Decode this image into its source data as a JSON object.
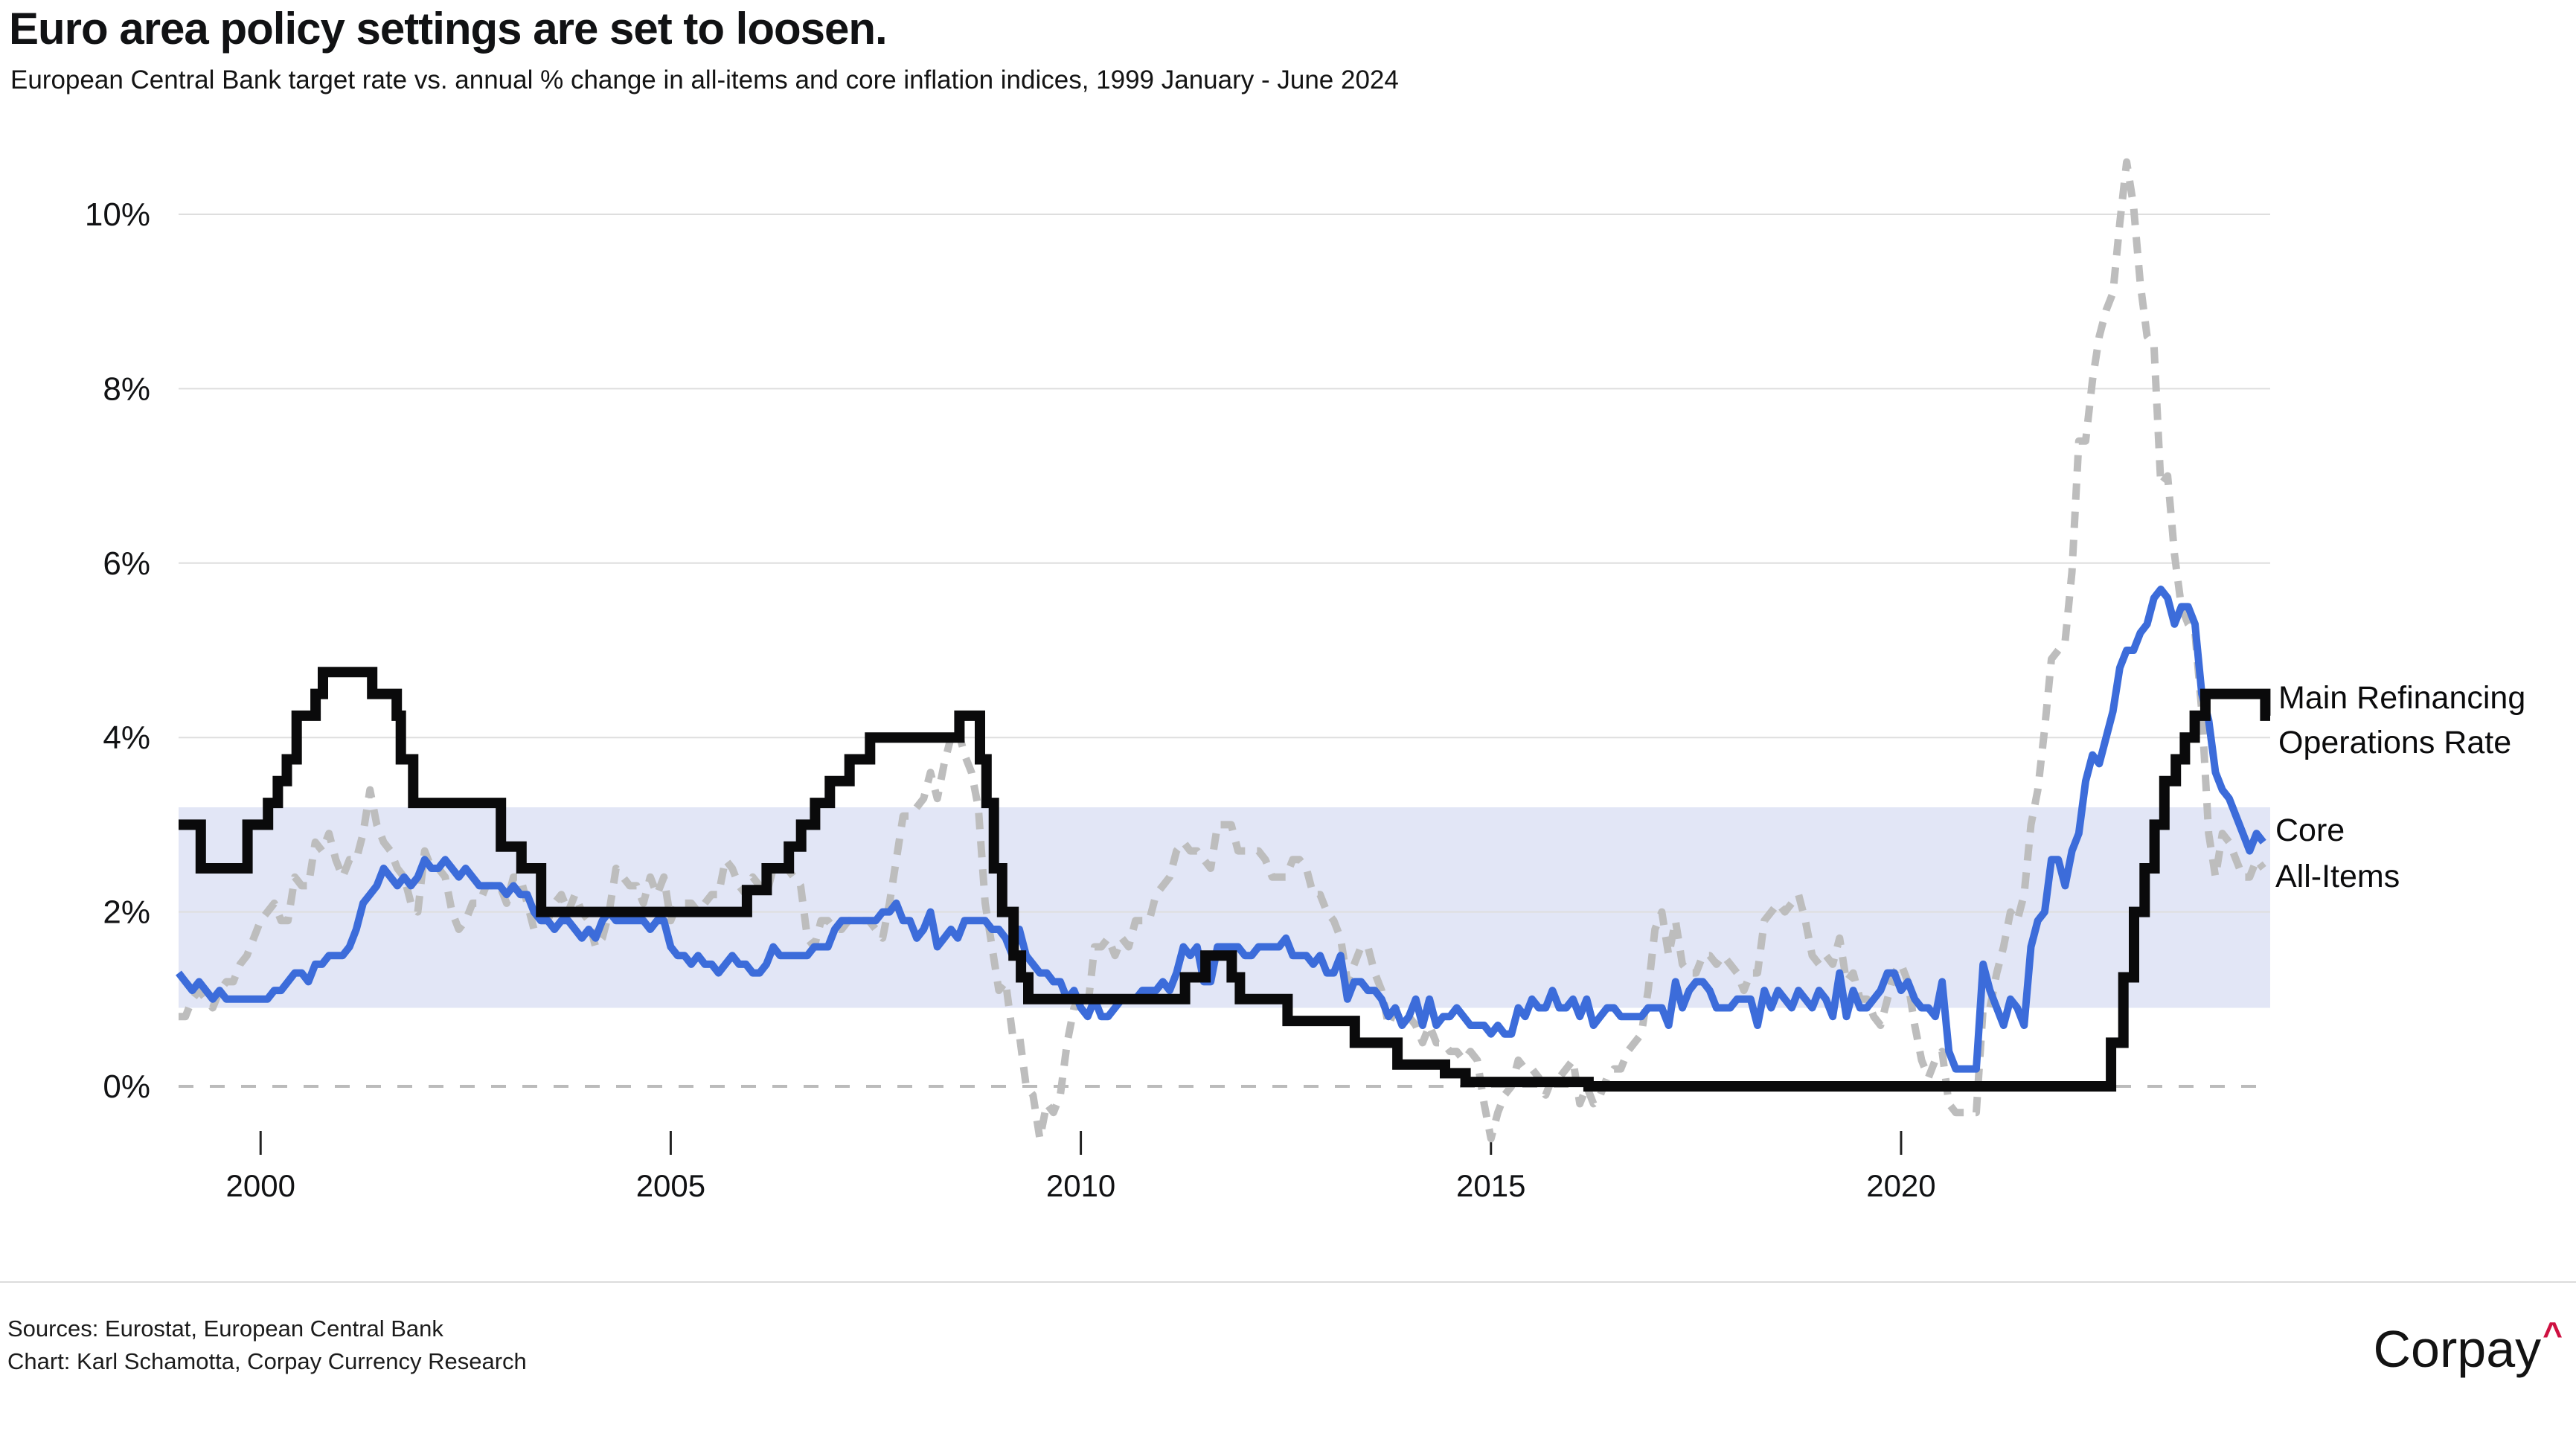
{
  "header": {
    "title": "Euro area policy settings are set to loosen.",
    "subtitle": "European Central Bank target rate vs. annual % change in all-items and core inflation indices, 1999 January - June 2024"
  },
  "footer": {
    "sources": "Sources: Eurostat, European Central Bank",
    "credit": "Chart: Karl Schamotta, Corpay Currency Research",
    "logo_text": "Corpay",
    "logo_caret": "^",
    "logo_caret_color": "#CE1141"
  },
  "colors": {
    "band": "#E2E6F6",
    "gridline": "#DEDEDE",
    "zero_line": "#BBBBBB",
    "mro": "#0A0A0B",
    "core": "#3C6CDA",
    "all_items": "#BDBDBD",
    "text": "#111214"
  },
  "chart_data": {
    "type": "line",
    "title": "Euro area policy settings are set to loosen.",
    "subtitle": "European Central Bank target rate vs. annual % change in all-items and core inflation indices, 1999 January - June 2024",
    "x_axis": {
      "range": [
        1999.0,
        2024.5
      ],
      "ticks": [
        2000,
        2005,
        2010,
        2015,
        2020
      ]
    },
    "y_axis": {
      "range": [
        -0.75,
        10.75
      ],
      "tick_values": [
        0,
        2,
        4,
        6,
        8,
        10
      ],
      "tick_labels": [
        "0%",
        "2%",
        "4%",
        "6%",
        "8%",
        "10%"
      ],
      "zero_line_dashed": true
    },
    "band": {
      "from": 0.9,
      "to": 3.2
    },
    "legend_position": "right-of-line-ends",
    "grid": true,
    "series": [
      {
        "name": "Main Refinancing Operations Rate",
        "label_lines": [
          "Main Refinancing",
          "Operations Rate"
        ],
        "style": "step",
        "width": 14,
        "points": [
          [
            1999.0,
            3.0
          ],
          [
            1999.27,
            2.5
          ],
          [
            1999.84,
            3.0
          ],
          [
            2000.09,
            3.25
          ],
          [
            2000.21,
            3.5
          ],
          [
            2000.32,
            3.75
          ],
          [
            2000.44,
            4.25
          ],
          [
            2000.67,
            4.5
          ],
          [
            2000.76,
            4.75
          ],
          [
            2001.36,
            4.5
          ],
          [
            2001.66,
            4.25
          ],
          [
            2001.71,
            3.75
          ],
          [
            2001.86,
            3.25
          ],
          [
            2002.93,
            2.75
          ],
          [
            2003.18,
            2.5
          ],
          [
            2003.42,
            2.0
          ],
          [
            2005.93,
            2.25
          ],
          [
            2006.17,
            2.5
          ],
          [
            2006.44,
            2.75
          ],
          [
            2006.59,
            3.0
          ],
          [
            2006.76,
            3.25
          ],
          [
            2006.94,
            3.5
          ],
          [
            2007.18,
            3.75
          ],
          [
            2007.43,
            4.0
          ],
          [
            2008.52,
            4.25
          ],
          [
            2008.77,
            3.75
          ],
          [
            2008.85,
            3.25
          ],
          [
            2008.94,
            2.5
          ],
          [
            2009.04,
            2.0
          ],
          [
            2009.18,
            1.5
          ],
          [
            2009.27,
            1.25
          ],
          [
            2009.36,
            1.0
          ],
          [
            2011.27,
            1.25
          ],
          [
            2011.52,
            1.5
          ],
          [
            2011.84,
            1.25
          ],
          [
            2011.94,
            1.0
          ],
          [
            2012.52,
            0.75
          ],
          [
            2013.34,
            0.5
          ],
          [
            2013.86,
            0.25
          ],
          [
            2014.44,
            0.15
          ],
          [
            2014.69,
            0.05
          ],
          [
            2016.19,
            0.0
          ],
          [
            2022.56,
            0.5
          ],
          [
            2022.71,
            1.25
          ],
          [
            2022.84,
            2.0
          ],
          [
            2022.97,
            2.5
          ],
          [
            2023.09,
            3.0
          ],
          [
            2023.21,
            3.5
          ],
          [
            2023.35,
            3.75
          ],
          [
            2023.46,
            4.0
          ],
          [
            2023.58,
            4.25
          ],
          [
            2023.71,
            4.5
          ],
          [
            2024.44,
            4.25
          ]
        ]
      },
      {
        "name": "Core",
        "label": "Core",
        "style": "line",
        "width": 10,
        "start": 1999.0,
        "values_per_year": 12,
        "values": [
          1.3,
          1.2,
          1.1,
          1.2,
          1.1,
          1.0,
          1.1,
          1.0,
          1.0,
          1.0,
          1.0,
          1.0,
          1.0,
          1.0,
          1.1,
          1.1,
          1.2,
          1.3,
          1.3,
          1.2,
          1.4,
          1.4,
          1.5,
          1.5,
          1.5,
          1.6,
          1.8,
          2.1,
          2.2,
          2.3,
          2.5,
          2.4,
          2.3,
          2.4,
          2.3,
          2.4,
          2.6,
          2.5,
          2.5,
          2.6,
          2.5,
          2.4,
          2.5,
          2.4,
          2.3,
          2.3,
          2.3,
          2.3,
          2.2,
          2.3,
          2.2,
          2.2,
          2.0,
          1.9,
          1.9,
          1.8,
          1.9,
          1.9,
          1.8,
          1.7,
          1.8,
          1.7,
          1.9,
          2.0,
          1.9,
          1.9,
          1.9,
          1.9,
          1.9,
          1.8,
          1.9,
          1.9,
          1.6,
          1.5,
          1.5,
          1.4,
          1.5,
          1.4,
          1.4,
          1.3,
          1.4,
          1.5,
          1.4,
          1.4,
          1.3,
          1.3,
          1.4,
          1.6,
          1.5,
          1.5,
          1.5,
          1.5,
          1.5,
          1.6,
          1.6,
          1.6,
          1.8,
          1.9,
          1.9,
          1.9,
          1.9,
          1.9,
          1.9,
          2.0,
          2.0,
          2.1,
          1.9,
          1.9,
          1.7,
          1.8,
          2.0,
          1.6,
          1.7,
          1.8,
          1.7,
          1.9,
          1.9,
          1.9,
          1.9,
          1.8,
          1.8,
          1.7,
          1.5,
          1.8,
          1.5,
          1.4,
          1.3,
          1.3,
          1.2,
          1.2,
          1.0,
          1.1,
          0.9,
          0.8,
          1.0,
          0.8,
          0.8,
          0.9,
          1.0,
          1.0,
          1.0,
          1.1,
          1.1,
          1.1,
          1.2,
          1.1,
          1.3,
          1.6,
          1.5,
          1.6,
          1.2,
          1.2,
          1.6,
          1.6,
          1.6,
          1.6,
          1.5,
          1.5,
          1.6,
          1.6,
          1.6,
          1.6,
          1.7,
          1.5,
          1.5,
          1.5,
          1.4,
          1.5,
          1.3,
          1.3,
          1.5,
          1.0,
          1.2,
          1.2,
          1.1,
          1.1,
          1.0,
          0.8,
          0.9,
          0.7,
          0.8,
          1.0,
          0.7,
          1.0,
          0.7,
          0.8,
          0.8,
          0.9,
          0.8,
          0.7,
          0.7,
          0.7,
          0.6,
          0.7,
          0.6,
          0.6,
          0.9,
          0.8,
          1.0,
          0.9,
          0.9,
          1.1,
          0.9,
          0.9,
          1.0,
          0.8,
          1.0,
          0.7,
          0.8,
          0.9,
          0.9,
          0.8,
          0.8,
          0.8,
          0.8,
          0.9,
          0.9,
          0.9,
          0.7,
          1.2,
          0.9,
          1.1,
          1.2,
          1.2,
          1.1,
          0.9,
          0.9,
          0.9,
          1.0,
          1.0,
          1.0,
          0.7,
          1.1,
          0.9,
          1.1,
          1.0,
          0.9,
          1.1,
          1.0,
          0.9,
          1.1,
          1.0,
          0.8,
          1.3,
          0.8,
          1.1,
          0.9,
          0.9,
          1.0,
          1.1,
          1.3,
          1.3,
          1.1,
          1.2,
          1.0,
          0.9,
          0.9,
          0.8,
          1.2,
          0.4,
          0.2,
          0.2,
          0.2,
          0.2,
          1.4,
          1.1,
          0.9,
          0.7,
          1.0,
          0.9,
          0.7,
          1.6,
          1.9,
          2.0,
          2.6,
          2.6,
          2.3,
          2.7,
          2.9,
          3.5,
          3.8,
          3.7,
          4.0,
          4.3,
          4.8,
          5.0,
          5.0,
          5.2,
          5.3,
          5.6,
          5.7,
          5.6,
          5.3,
          5.5,
          5.5,
          5.3,
          4.5,
          4.2,
          3.6,
          3.4,
          3.3,
          3.1,
          2.9,
          2.7,
          2.9,
          2.8
        ]
      },
      {
        "name": "All-Items",
        "label": "All-Items",
        "style": "dashed-line",
        "width": 10,
        "start": 1999.0,
        "values_per_year": 12,
        "values": [
          0.8,
          0.8,
          1.0,
          1.1,
          1.0,
          0.9,
          1.1,
          1.2,
          1.2,
          1.4,
          1.5,
          1.7,
          1.9,
          2.0,
          2.1,
          1.9,
          1.9,
          2.4,
          2.3,
          2.3,
          2.8,
          2.7,
          2.9,
          2.6,
          2.4,
          2.6,
          2.6,
          2.9,
          3.4,
          3.0,
          2.8,
          2.7,
          2.5,
          2.4,
          2.1,
          2.0,
          2.7,
          2.5,
          2.5,
          2.4,
          2.0,
          1.8,
          1.9,
          2.1,
          2.1,
          2.3,
          2.3,
          2.3,
          2.1,
          2.4,
          2.4,
          2.1,
          1.8,
          1.9,
          1.9,
          2.1,
          2.2,
          2.0,
          2.2,
          2.0,
          1.9,
          1.6,
          1.7,
          2.0,
          2.5,
          2.4,
          2.3,
          2.3,
          2.1,
          2.4,
          2.2,
          2.4,
          1.9,
          2.1,
          2.1,
          2.1,
          2.0,
          2.1,
          2.2,
          2.2,
          2.6,
          2.5,
          2.3,
          2.2,
          2.4,
          2.3,
          2.2,
          2.5,
          2.5,
          2.5,
          2.4,
          2.3,
          1.7,
          1.6,
          1.9,
          1.9,
          1.8,
          1.8,
          1.9,
          1.9,
          1.9,
          1.9,
          1.8,
          1.7,
          2.1,
          2.6,
          3.1,
          3.1,
          3.2,
          3.3,
          3.6,
          3.3,
          3.7,
          4.0,
          4.1,
          3.8,
          3.6,
          3.2,
          2.1,
          1.6,
          1.1,
          1.2,
          0.6,
          0.6,
          0.0,
          -0.1,
          -0.6,
          -0.2,
          -0.3,
          -0.1,
          0.5,
          0.9,
          1.0,
          0.9,
          1.6,
          1.6,
          1.7,
          1.5,
          1.7,
          1.6,
          1.9,
          1.9,
          1.9,
          2.2,
          2.3,
          2.4,
          2.7,
          2.8,
          2.7,
          2.7,
          2.6,
          2.5,
          3.0,
          3.0,
          3.0,
          2.7,
          2.7,
          2.7,
          2.7,
          2.6,
          2.4,
          2.4,
          2.4,
          2.6,
          2.6,
          2.5,
          2.2,
          2.2,
          2.0,
          1.9,
          1.7,
          1.2,
          1.4,
          1.6,
          1.6,
          1.3,
          1.1,
          0.7,
          0.9,
          0.8,
          0.8,
          0.7,
          0.5,
          0.7,
          0.5,
          0.5,
          0.4,
          0.4,
          0.3,
          0.4,
          0.3,
          -0.2,
          -0.6,
          -0.3,
          -0.1,
          0.0,
          0.3,
          0.2,
          0.2,
          0.1,
          -0.1,
          0.1,
          0.1,
          0.2,
          0.3,
          -0.2,
          0.0,
          -0.2,
          -0.1,
          0.1,
          0.2,
          0.2,
          0.4,
          0.5,
          0.6,
          1.1,
          1.8,
          2.0,
          1.5,
          1.9,
          1.4,
          1.3,
          1.3,
          1.5,
          1.5,
          1.4,
          1.5,
          1.4,
          1.3,
          1.1,
          1.3,
          1.3,
          1.9,
          2.0,
          2.1,
          2.0,
          2.1,
          2.2,
          1.9,
          1.5,
          1.4,
          1.5,
          1.4,
          1.7,
          1.2,
          1.3,
          1.0,
          1.0,
          0.8,
          0.7,
          1.0,
          1.3,
          1.4,
          1.2,
          0.7,
          0.3,
          0.1,
          0.3,
          0.4,
          -0.2,
          -0.3,
          -0.3,
          -0.3,
          -0.3,
          0.9,
          0.9,
          1.3,
          1.6,
          2.0,
          1.9,
          2.2,
          3.0,
          3.4,
          4.1,
          4.9,
          5.0,
          5.1,
          5.9,
          7.4,
          7.4,
          8.1,
          8.6,
          8.9,
          9.1,
          9.9,
          10.6,
          10.1,
          9.2,
          8.6,
          8.5,
          6.9,
          7.0,
          6.1,
          5.5,
          5.3,
          5.2,
          4.3,
          2.9,
          2.4,
          2.9,
          2.8,
          2.6,
          2.4,
          2.4,
          2.6,
          2.5
        ]
      }
    ]
  }
}
